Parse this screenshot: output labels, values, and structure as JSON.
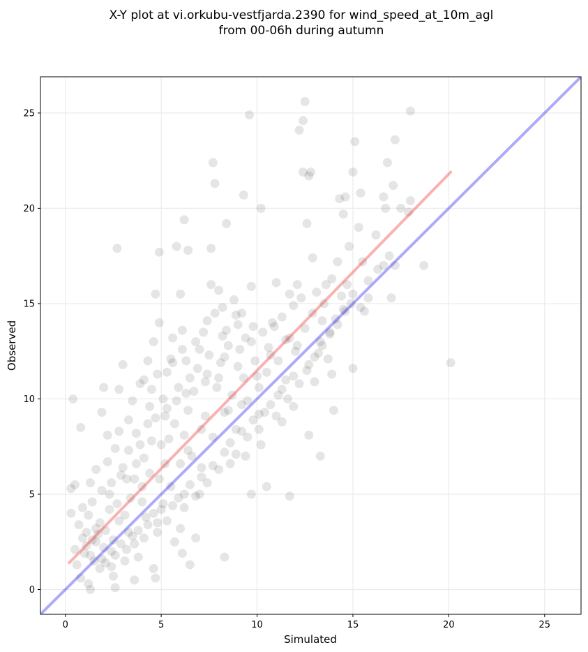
{
  "chart_data": {
    "type": "scatter",
    "title_lines": [
      "X-Y plot at vi.orkubu-vestfjarda.2390 for wind_speed_at_10m_agl",
      "from 00-06h during autumn"
    ],
    "xlabel": "Simulated",
    "ylabel": "Observed",
    "xlim": [
      -1.3,
      26.9
    ],
    "ylim": [
      -1.3,
      26.9
    ],
    "xticks": [
      0,
      5,
      10,
      15,
      20,
      25
    ],
    "yticks": [
      0,
      5,
      10,
      15,
      20,
      25
    ],
    "grid": true,
    "colors": {
      "points": "#000000",
      "one_to_one_line": "#0000ee",
      "fit_line": "#ee2222",
      "grid": "#ebebeb",
      "frame": "#000000"
    },
    "one_to_one_line": {
      "x": [
        -1.3,
        26.9
      ],
      "y": [
        -1.3,
        26.9
      ]
    },
    "fit_line": {
      "x": [
        0.2,
        20.1
      ],
      "y": [
        1.4,
        21.9
      ]
    },
    "series": [
      {
        "points": [
          [
            0.3,
            4.0
          ],
          [
            0.3,
            5.3
          ],
          [
            0.4,
            10.0
          ],
          [
            0.5,
            5.5
          ],
          [
            0.8,
            8.5
          ],
          [
            0.5,
            2.1
          ],
          [
            0.7,
            3.4
          ],
          [
            0.9,
            4.3
          ],
          [
            1.1,
            3.0
          ],
          [
            1.3,
            5.6
          ],
          [
            1.0,
            1.9
          ],
          [
            1.2,
            0.3
          ],
          [
            1.3,
            0.0
          ],
          [
            1.4,
            2.6
          ],
          [
            1.6,
            6.3
          ],
          [
            1.8,
            3.5
          ],
          [
            1.9,
            9.3
          ],
          [
            2.0,
            10.6
          ],
          [
            2.2,
            8.1
          ],
          [
            2.3,
            5.0
          ],
          [
            2.4,
            1.2
          ],
          [
            2.6,
            0.1
          ],
          [
            2.5,
            0.7
          ],
          [
            2.8,
            3.6
          ],
          [
            2.8,
            10.5
          ],
          [
            3.0,
            11.8
          ],
          [
            2.7,
            17.9
          ],
          [
            3.2,
            5.8
          ],
          [
            3.3,
            7.3
          ],
          [
            3.5,
            2.8
          ],
          [
            3.6,
            0.5
          ],
          [
            3.8,
            1.7
          ],
          [
            4.0,
            4.6
          ],
          [
            4.1,
            6.9
          ],
          [
            4.3,
            8.7
          ],
          [
            4.5,
            10.5
          ],
          [
            4.6,
            13.0
          ],
          [
            4.7,
            15.5
          ],
          [
            4.9,
            14.0
          ],
          [
            4.9,
            17.7
          ],
          [
            4.6,
            1.1
          ],
          [
            4.7,
            0.6
          ],
          [
            4.8,
            3.5
          ],
          [
            5.0,
            7.6
          ],
          [
            5.2,
            9.1
          ],
          [
            5.3,
            11.4
          ],
          [
            5.5,
            12.1
          ],
          [
            5.6,
            13.2
          ],
          [
            5.8,
            18.0
          ],
          [
            6.4,
            17.8
          ],
          [
            6.2,
            19.4
          ],
          [
            6.0,
            15.5
          ],
          [
            6.1,
            12.6
          ],
          [
            6.3,
            10.3
          ],
          [
            6.4,
            7.3
          ],
          [
            6.2,
            5.0
          ],
          [
            6.0,
            3.2
          ],
          [
            5.7,
            2.5
          ],
          [
            6.1,
            1.9
          ],
          [
            6.5,
            1.3
          ],
          [
            6.8,
            2.7
          ],
          [
            7.0,
            5.0
          ],
          [
            7.1,
            8.4
          ],
          [
            7.3,
            10.9
          ],
          [
            7.4,
            14.1
          ],
          [
            7.6,
            16.0
          ],
          [
            7.6,
            17.9
          ],
          [
            7.7,
            22.4
          ],
          [
            7.8,
            21.3
          ],
          [
            8.0,
            15.7
          ],
          [
            8.2,
            13.3
          ],
          [
            8.3,
            12.2
          ],
          [
            8.5,
            9.4
          ],
          [
            8.6,
            6.6
          ],
          [
            8.3,
            1.7
          ],
          [
            8.4,
            19.2
          ],
          [
            8.9,
            14.4
          ],
          [
            9.0,
            11.7
          ],
          [
            9.2,
            9.7
          ],
          [
            9.4,
            7.0
          ],
          [
            9.3,
            20.7
          ],
          [
            9.6,
            24.9
          ],
          [
            9.7,
            15.9
          ],
          [
            9.8,
            13.8
          ],
          [
            10.0,
            11.2
          ],
          [
            10.1,
            9.2
          ],
          [
            10.2,
            7.6
          ],
          [
            9.7,
            5.0
          ],
          [
            10.2,
            20.0
          ],
          [
            10.5,
            5.4
          ],
          [
            10.6,
            12.7
          ],
          [
            10.8,
            14.0
          ],
          [
            11.0,
            16.1
          ],
          [
            11.1,
            10.2
          ],
          [
            11.3,
            8.8
          ],
          [
            11.5,
            13.1
          ],
          [
            11.7,
            15.5
          ],
          [
            11.7,
            4.9
          ],
          [
            11.9,
            9.6
          ],
          [
            12.0,
            12.5
          ],
          [
            12.1,
            16.0
          ],
          [
            12.2,
            24.1
          ],
          [
            12.4,
            24.6
          ],
          [
            12.5,
            25.6
          ],
          [
            12.4,
            21.9
          ],
          [
            12.6,
            19.2
          ],
          [
            12.7,
            21.7
          ],
          [
            12.8,
            21.9
          ],
          [
            12.9,
            17.4
          ],
          [
            12.7,
            8.1
          ],
          [
            13.0,
            10.9
          ],
          [
            13.2,
            12.4
          ],
          [
            13.3,
            7.0
          ],
          [
            13.4,
            14.1
          ],
          [
            13.6,
            16.0
          ],
          [
            13.8,
            13.4
          ],
          [
            13.9,
            11.3
          ],
          [
            14.0,
            9.4
          ],
          [
            14.2,
            17.2
          ],
          [
            14.3,
            20.5
          ],
          [
            14.5,
            19.7
          ],
          [
            14.6,
            20.6
          ],
          [
            14.5,
            14.7
          ],
          [
            14.7,
            16.0
          ],
          [
            14.8,
            18.0
          ],
          [
            14.9,
            15.0
          ],
          [
            15.0,
            11.6
          ],
          [
            15.1,
            23.5
          ],
          [
            15.0,
            21.9
          ],
          [
            15.3,
            19.0
          ],
          [
            15.4,
            20.8
          ],
          [
            15.5,
            17.2
          ],
          [
            15.6,
            14.6
          ],
          [
            15.8,
            15.3
          ],
          [
            16.2,
            18.6
          ],
          [
            16.6,
            20.6
          ],
          [
            16.7,
            20.0
          ],
          [
            16.8,
            22.4
          ],
          [
            16.6,
            17.0
          ],
          [
            17.1,
            21.2
          ],
          [
            17.0,
            15.3
          ],
          [
            17.2,
            17.0
          ],
          [
            17.2,
            23.6
          ],
          [
            17.5,
            20.0
          ],
          [
            17.9,
            19.8
          ],
          [
            18.0,
            25.1
          ],
          [
            18.0,
            20.4
          ],
          [
            18.7,
            17.0
          ],
          [
            20.1,
            11.9
          ],
          [
            16.9,
            17.5
          ],
          [
            1.1,
            2.3
          ],
          [
            1.5,
            1.5
          ],
          [
            1.7,
            2.9
          ],
          [
            2.0,
            2.2
          ],
          [
            2.1,
            3.1
          ],
          [
            2.3,
            4.2
          ],
          [
            2.5,
            2.6
          ],
          [
            2.7,
            4.5
          ],
          [
            2.9,
            6.0
          ],
          [
            3.1,
            3.9
          ],
          [
            3.2,
            2.1
          ],
          [
            3.4,
            4.8
          ],
          [
            3.6,
            5.8
          ],
          [
            3.7,
            6.6
          ],
          [
            3.9,
            7.6
          ],
          [
            4.0,
            5.4
          ],
          [
            4.2,
            3.8
          ],
          [
            4.4,
            6.1
          ],
          [
            4.5,
            7.8
          ],
          [
            4.7,
            9.0
          ],
          [
            4.9,
            5.8
          ],
          [
            5.0,
            4.2
          ],
          [
            5.2,
            6.6
          ],
          [
            5.4,
            7.9
          ],
          [
            5.5,
            5.4
          ],
          [
            5.7,
            8.7
          ],
          [
            5.8,
            9.9
          ],
          [
            6.0,
            6.6
          ],
          [
            6.2,
            8.1
          ],
          [
            6.4,
            9.4
          ],
          [
            6.6,
            7.0
          ],
          [
            6.7,
            10.4
          ],
          [
            6.9,
            11.6
          ],
          [
            7.1,
            6.4
          ],
          [
            7.3,
            9.1
          ],
          [
            7.5,
            12.3
          ],
          [
            7.7,
            8.0
          ],
          [
            7.9,
            10.6
          ],
          [
            8.1,
            11.9
          ],
          [
            8.3,
            9.3
          ],
          [
            8.5,
            12.8
          ],
          [
            8.7,
            10.2
          ],
          [
            8.9,
            8.4
          ],
          [
            9.1,
            12.6
          ],
          [
            9.3,
            11.1
          ],
          [
            9.5,
            9.9
          ],
          [
            9.7,
            13.0
          ],
          [
            9.9,
            12.0
          ],
          [
            10.1,
            10.6
          ],
          [
            10.3,
            13.5
          ],
          [
            10.5,
            11.4
          ],
          [
            10.7,
            12.3
          ],
          [
            10.9,
            13.8
          ],
          [
            11.1,
            12.0
          ],
          [
            11.3,
            14.3
          ],
          [
            11.5,
            11.0
          ],
          [
            11.7,
            13.2
          ],
          [
            11.9,
            14.9
          ],
          [
            12.1,
            12.8
          ],
          [
            12.3,
            15.3
          ],
          [
            12.5,
            13.7
          ],
          [
            12.7,
            11.8
          ],
          [
            12.9,
            14.5
          ],
          [
            13.1,
            15.6
          ],
          [
            13.3,
            13.0
          ],
          [
            13.5,
            15.0
          ],
          [
            13.7,
            12.1
          ],
          [
            13.9,
            16.3
          ],
          [
            14.1,
            14.2
          ],
          [
            14.4,
            15.4
          ],
          [
            0.6,
            1.3
          ],
          [
            0.8,
            0.6
          ],
          [
            0.9,
            2.7
          ],
          [
            1.2,
            3.9
          ],
          [
            1.4,
            4.6
          ],
          [
            1.6,
            3.2
          ],
          [
            1.8,
            1.1
          ],
          [
            1.9,
            5.2
          ],
          [
            2.2,
            6.7
          ],
          [
            2.4,
            5.6
          ],
          [
            2.6,
            7.4
          ],
          [
            2.8,
            8.3
          ],
          [
            3.0,
            6.4
          ],
          [
            3.3,
            8.9
          ],
          [
            3.5,
            9.9
          ],
          [
            3.7,
            8.2
          ],
          [
            3.9,
            10.8
          ],
          [
            4.1,
            11.0
          ],
          [
            4.3,
            12.0
          ],
          [
            4.4,
            9.6
          ],
          [
            4.8,
            11.3
          ],
          [
            5.1,
            10.0
          ],
          [
            5.3,
            9.5
          ],
          [
            5.6,
            11.9
          ],
          [
            5.9,
            10.6
          ],
          [
            6.1,
            13.6
          ],
          [
            6.3,
            12.0
          ],
          [
            6.5,
            11.1
          ],
          [
            6.8,
            13.0
          ],
          [
            7.0,
            12.6
          ],
          [
            7.2,
            13.5
          ],
          [
            7.4,
            11.3
          ],
          [
            7.8,
            14.5
          ],
          [
            8.0,
            11.1
          ],
          [
            8.2,
            14.8
          ],
          [
            8.4,
            13.6
          ],
          [
            8.8,
            15.2
          ],
          [
            9.0,
            13.9
          ],
          [
            9.2,
            14.5
          ],
          [
            9.4,
            13.2
          ],
          [
            1.3,
            1.8
          ],
          [
            1.6,
            2.5
          ],
          [
            1.9,
            1.6
          ],
          [
            2.1,
            1.4
          ],
          [
            2.4,
            2.0
          ],
          [
            2.6,
            1.8
          ],
          [
            2.9,
            2.4
          ],
          [
            3.1,
            1.5
          ],
          [
            3.3,
            3.0
          ],
          [
            3.6,
            2.4
          ],
          [
            3.8,
            3.1
          ],
          [
            4.1,
            2.7
          ],
          [
            4.3,
            3.4
          ],
          [
            4.6,
            4.0
          ],
          [
            4.8,
            3.0
          ],
          [
            5.1,
            4.5
          ],
          [
            5.3,
            3.6
          ],
          [
            5.6,
            4.4
          ],
          [
            5.9,
            4.8
          ],
          [
            6.2,
            4.3
          ],
          [
            6.5,
            5.5
          ],
          [
            6.8,
            4.9
          ],
          [
            7.1,
            5.9
          ],
          [
            7.4,
            5.6
          ],
          [
            7.7,
            6.5
          ],
          [
            8.0,
            6.3
          ],
          [
            8.3,
            7.2
          ],
          [
            8.6,
            7.7
          ],
          [
            8.9,
            7.1
          ],
          [
            9.2,
            8.3
          ],
          [
            9.5,
            8.0
          ],
          [
            9.8,
            8.9
          ],
          [
            10.1,
            8.4
          ],
          [
            10.4,
            9.3
          ],
          [
            10.7,
            9.7
          ],
          [
            11.0,
            9.1
          ],
          [
            11.3,
            10.5
          ],
          [
            11.6,
            10.0
          ],
          [
            11.9,
            11.2
          ],
          [
            12.2,
            10.8
          ],
          [
            12.6,
            11.5
          ],
          [
            13.0,
            12.2
          ],
          [
            13.4,
            12.8
          ],
          [
            13.8,
            13.5
          ],
          [
            14.2,
            13.9
          ],
          [
            14.6,
            14.6
          ],
          [
            15.0,
            15.5
          ],
          [
            15.4,
            14.8
          ],
          [
            15.8,
            16.2
          ],
          [
            16.3,
            16.8
          ]
        ]
      }
    ]
  }
}
